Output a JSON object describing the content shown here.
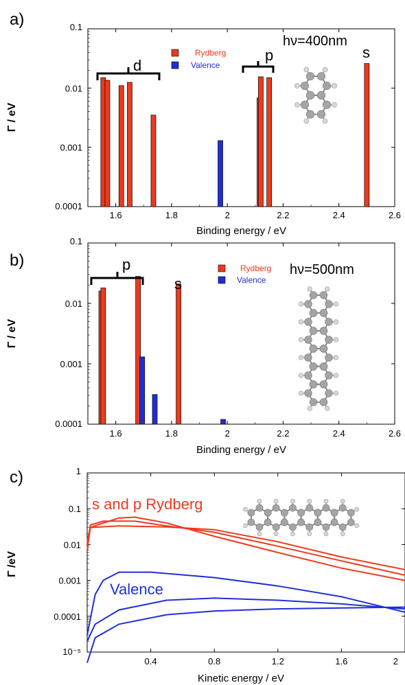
{
  "chart_data": [
    {
      "panel_label": "a)",
      "type": "bar",
      "ylabel": "Γ / eV",
      "xlabel": "Binding energy / eV",
      "yscale": "log",
      "ylim": [
        0.0001,
        0.1
      ],
      "xlim": [
        1.5,
        2.6
      ],
      "xticks": [
        "1.6",
        "1.8",
        "2",
        "2.2",
        "2.4",
        "2.6"
      ],
      "yticks": [
        "0.0001",
        "0.001",
        "0.01",
        "0.1"
      ],
      "legend": [
        "Rydberg",
        "Valence"
      ],
      "legend_position": "top-center",
      "colors": {
        "Rydberg": "#ee3a1c",
        "Valence": "#1f2fd6"
      },
      "series": [
        {
          "name": "Rydberg",
          "x": [
            1.555,
            1.57,
            1.62,
            1.65,
            1.735,
            2.115,
            2.12,
            2.15,
            2.5
          ],
          "values": [
            0.015,
            0.0135,
            0.011,
            0.0125,
            0.0035,
            0.0068,
            0.0155,
            0.015,
            0.026
          ]
        },
        {
          "name": "Valence",
          "x": [
            1.975
          ],
          "values": [
            0.0013
          ]
        }
      ],
      "annotations": [
        "d",
        "p",
        "s",
        "hν=400nm"
      ]
    },
    {
      "panel_label": "b)",
      "type": "bar",
      "ylabel": "Γ / eV",
      "xlabel": "Binding energy / eV",
      "yscale": "log",
      "ylim": [
        0.0001,
        0.1
      ],
      "xlim": [
        1.5,
        2.6
      ],
      "xticks": [
        "1.6",
        "1.8",
        "2",
        "2.2",
        "2.4",
        "2.6"
      ],
      "yticks": [
        "0.0001",
        "0.001",
        "0.01",
        "0.1"
      ],
      "legend": [
        "Rydberg",
        "Valence"
      ],
      "legend_position": "top-center",
      "colors": {
        "Rydberg": "#ee3a1c",
        "Valence": "#1f2fd6"
      },
      "series": [
        {
          "name": "Rydberg",
          "x": [
            1.548,
            1.555,
            1.68,
            1.825
          ],
          "values": [
            0.016,
            0.018,
            0.028,
            0.021
          ]
        },
        {
          "name": "Valence",
          "x": [
            1.695,
            1.74,
            1.985
          ],
          "values": [
            0.0013,
            0.00031,
            0.00012
          ]
        }
      ],
      "annotations": [
        "p",
        "s",
        "hν=500nm"
      ]
    },
    {
      "panel_label": "c)",
      "type": "line",
      "ylabel": "Γ /eV",
      "xlabel": "Kinetic energy / eV",
      "yscale": "log",
      "ylim": [
        1e-05,
        1
      ],
      "xlim": [
        0,
        2
      ],
      "xticks": [
        "0.4",
        "0.8",
        "1.2",
        "1.6",
        "2"
      ],
      "yticks": [
        "10⁻⁵",
        "0.0001",
        "0.001",
        "0.01",
        "0.1",
        "1"
      ],
      "colors": {
        "Rydberg": "#ee3a1c",
        "Valence": "#1f2fd6"
      },
      "series": [
        {
          "group": "Rydberg",
          "x": [
            0,
            0.02,
            0.1,
            0.2,
            0.3,
            0.5,
            0.8,
            1.2,
            1.6,
            2.0
          ],
          "y": [
            0.007,
            0.03,
            0.04,
            0.055,
            0.058,
            0.04,
            0.017,
            0.006,
            0.0022,
            0.001
          ]
        },
        {
          "group": "Rydberg",
          "x": [
            0,
            0.02,
            0.1,
            0.3,
            0.5,
            0.8,
            1.2,
            1.6,
            2.0
          ],
          "y": [
            0.01,
            0.035,
            0.045,
            0.045,
            0.033,
            0.022,
            0.009,
            0.0035,
            0.0014
          ]
        },
        {
          "group": "Rydberg",
          "x": [
            0,
            0.02,
            0.2,
            0.5,
            0.8,
            1.2,
            1.6,
            2.0
          ],
          "y": [
            0.012,
            0.03,
            0.033,
            0.031,
            0.026,
            0.012,
            0.0045,
            0.002
          ]
        },
        {
          "group": "Valence",
          "x": [
            0,
            0.05,
            0.1,
            0.2,
            0.4,
            0.8,
            1.2,
            1.6,
            2.0
          ],
          "y": [
            3e-05,
            0.0004,
            0.001,
            0.0017,
            0.0017,
            0.0012,
            0.0007,
            0.00035,
            0.00013
          ]
        },
        {
          "group": "Valence",
          "x": [
            0,
            0.05,
            0.2,
            0.5,
            0.8,
            1.2,
            1.6,
            2.0
          ],
          "y": [
            2e-05,
            6e-05,
            0.00015,
            0.00028,
            0.00032,
            0.00028,
            0.00022,
            0.00016
          ]
        },
        {
          "group": "Valence",
          "x": [
            0,
            0.05,
            0.2,
            0.5,
            0.8,
            1.2,
            1.6,
            2.0
          ],
          "y": [
            5e-06,
            2.5e-05,
            6e-05,
            0.00011,
            0.00014,
            0.00016,
            0.00017,
            0.00018
          ]
        }
      ],
      "annotations": [
        "s and p Rydberg",
        "Valence"
      ]
    }
  ]
}
